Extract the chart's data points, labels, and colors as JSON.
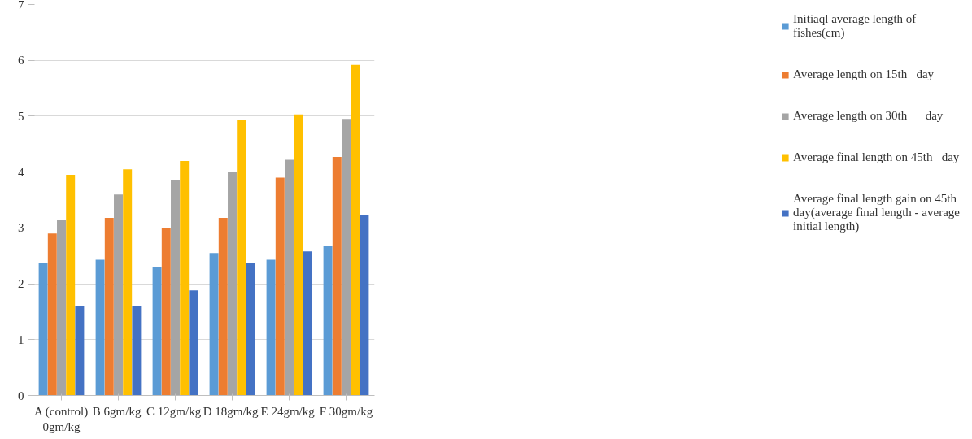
{
  "chart_data": {
    "type": "bar",
    "categories": [
      "A (control) 0gm/kg",
      "B  6gm/kg",
      "C  12gm/kg",
      "D  18gm/kg",
      "E  24gm/kg",
      "F 30gm/kg"
    ],
    "series": [
      {
        "name": "Initiaql average length of fishes(cm)",
        "color": "#5b9bd5",
        "values": [
          2.38,
          2.43,
          2.3,
          2.55,
          2.43,
          2.68
        ]
      },
      {
        "name": "Average length on 15th   day",
        "color": "#ed7d31",
        "values": [
          2.9,
          3.18,
          3.0,
          3.18,
          3.9,
          4.27
        ]
      },
      {
        "name": "Average length on 30th      day",
        "color": "#a5a5a5",
        "values": [
          3.15,
          3.6,
          3.85,
          4.0,
          4.22,
          4.95
        ]
      },
      {
        "name": "Average final length on 45th   day",
        "color": "#ffc000",
        "values": [
          3.95,
          4.05,
          4.2,
          4.93,
          5.03,
          5.92
        ]
      },
      {
        "name": "Average final length gain on 45th day(average final length - average initial length)",
        "color": "#4472c4",
        "values": [
          1.6,
          1.6,
          1.88,
          2.38,
          2.58,
          3.23
        ]
      }
    ],
    "ylim": [
      0,
      7
    ],
    "yticks": [
      0,
      1,
      2,
      3,
      4,
      5,
      6,
      7
    ],
    "grid": "y",
    "legend": "right"
  }
}
